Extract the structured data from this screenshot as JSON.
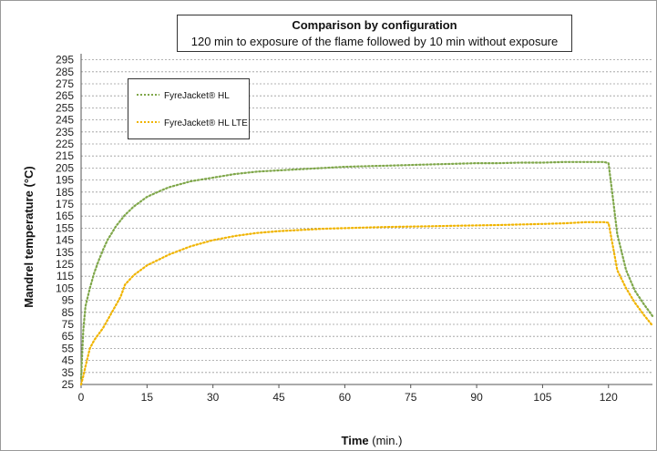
{
  "chart_data": {
    "type": "line",
    "title": "Comparison by configuration",
    "subtitle": "120 min to exposure of the flame followed by 10 min without exposure",
    "xlabel_bold": "Time",
    "xlabel_unit": " (min.)",
    "ylabel": "Mandrel temperature (°C)",
    "xlim": [
      0,
      130
    ],
    "ylim": [
      25,
      300
    ],
    "xticks": [
      0,
      15,
      30,
      45,
      60,
      75,
      90,
      105,
      120
    ],
    "yticks": [
      25,
      35,
      45,
      55,
      65,
      75,
      85,
      95,
      105,
      115,
      125,
      135,
      145,
      155,
      165,
      175,
      185,
      195,
      205,
      215,
      225,
      235,
      245,
      255,
      265,
      275,
      285,
      295
    ],
    "grid": true,
    "legend_position": "top-left",
    "series": [
      {
        "name": "FyreJacket® HL",
        "color": "#7fa74a",
        "x": [
          0,
          0.5,
          1,
          2,
          3,
          4,
          5,
          6,
          8,
          10,
          12,
          15,
          18,
          20,
          25,
          30,
          35,
          40,
          45,
          50,
          55,
          60,
          65,
          70,
          75,
          80,
          85,
          90,
          95,
          100,
          105,
          110,
          115,
          119,
          120,
          121,
          122,
          124,
          126,
          128,
          130
        ],
        "y": [
          30,
          70,
          90,
          105,
          118,
          128,
          137,
          145,
          157,
          166,
          173,
          181,
          186,
          189,
          194,
          197,
          200,
          202,
          203,
          204,
          205,
          206,
          206.5,
          207,
          207.5,
          208,
          208.5,
          209,
          209,
          209.5,
          209.5,
          210,
          210,
          210,
          209,
          180,
          150,
          120,
          103,
          92,
          82
        ]
      },
      {
        "name": "FyreJacket® HL LTE",
        "color": "#f0b400",
        "x": [
          0,
          0.5,
          1,
          2,
          3,
          4,
          5,
          7,
          9,
          10,
          12,
          15,
          20,
          25,
          30,
          35,
          40,
          45,
          50,
          55,
          60,
          65,
          70,
          75,
          80,
          85,
          90,
          95,
          100,
          105,
          110,
          115,
          119,
          120,
          121,
          122,
          124,
          126,
          128,
          130
        ],
        "y": [
          25,
          32,
          40,
          55,
          62,
          67,
          72,
          85,
          98,
          108,
          116,
          124,
          133,
          140,
          145,
          148.5,
          151,
          152.5,
          153.5,
          154.5,
          155,
          155.5,
          156,
          156.3,
          156.6,
          157,
          157.3,
          157.6,
          158,
          158.5,
          159,
          160,
          160,
          159.5,
          140,
          120,
          105,
          93,
          83,
          74
        ]
      }
    ]
  }
}
